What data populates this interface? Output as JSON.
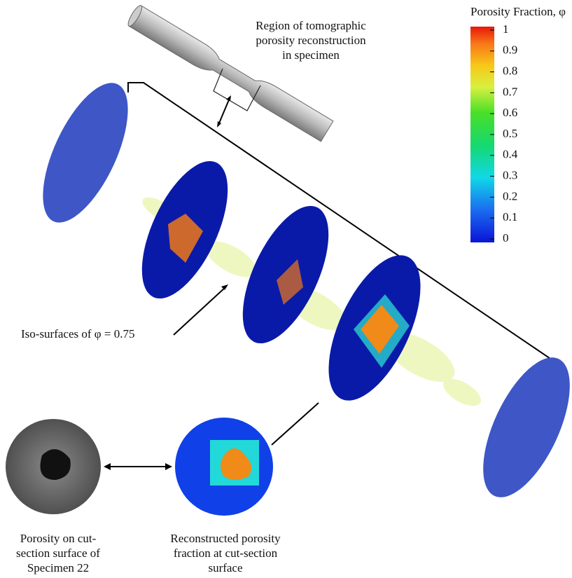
{
  "callouts": {
    "region": [
      "Region of tomographic",
      "porosity reconstruction",
      "in specimen"
    ],
    "iso_surface": "Iso-surfaces of φ = 0.75",
    "cut_section_photo": [
      "Porosity on cut-",
      "section surface of",
      "Specimen 22"
    ],
    "reconstructed": [
      "Reconstructed porosity",
      "fraction at cut-section",
      "surface"
    ]
  },
  "colorbar": {
    "title": "Porosity Fraction, φ",
    "ticks": [
      1,
      0.9,
      0.8,
      0.7,
      0.6,
      0.5,
      0.4,
      0.3,
      0.2,
      0.1,
      0
    ]
  }
}
